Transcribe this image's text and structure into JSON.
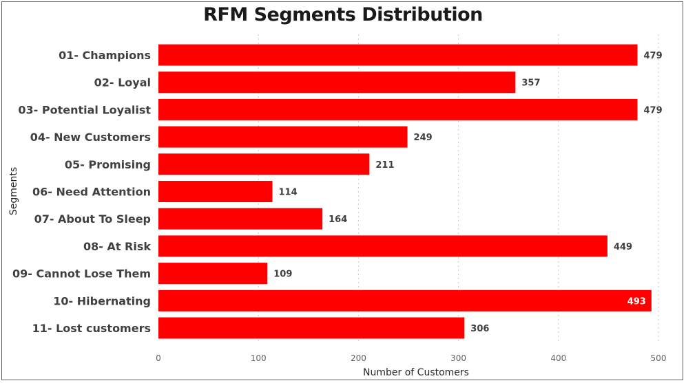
{
  "chart_data": {
    "type": "bar",
    "orientation": "horizontal",
    "title": "RFM Segments Distribution",
    "xlabel": "Number of Customers",
    "ylabel": "Segments",
    "categories": [
      "01- Champions",
      "02- Loyal",
      "03- Potential Loyalist",
      "04- New Customers",
      "05- Promising",
      "06- Need Attention",
      "07- About To Sleep",
      "08- At Risk",
      "09- Cannot Lose Them",
      "10- Hibernating",
      "11- Lost customers"
    ],
    "values": [
      479,
      357,
      479,
      249,
      211,
      114,
      164,
      449,
      109,
      493,
      306
    ],
    "xlim": [
      0,
      500
    ],
    "xticks": [
      0,
      100,
      200,
      300,
      400,
      500
    ],
    "grid": "vertical-dotted",
    "data_labels": true,
    "bar_color": "#ff0000"
  }
}
